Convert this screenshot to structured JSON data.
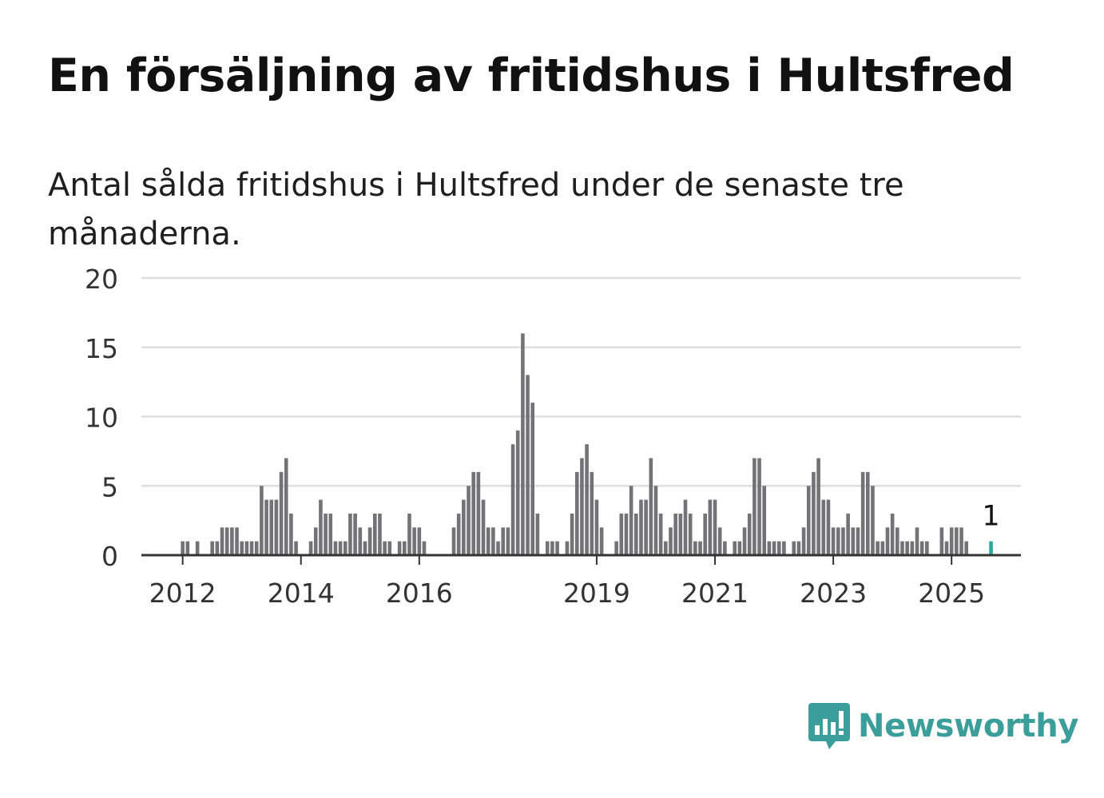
{
  "title": "En försäljning av fritidshus i Hultsfred",
  "subtitle": "Antal sålda fritidshus i Hultsfred under de senaste tre månaderna.",
  "brand": {
    "name": "Newsworthy",
    "logo_icon": "chart-bubble-icon"
  },
  "colors": {
    "bar": "#737276",
    "highlight": "#2aa99b",
    "grid": "#dedede",
    "axis": "#333333",
    "brand": "#3c9e9a"
  },
  "chart_data": {
    "type": "bar",
    "x_start": "2011-05",
    "x_interval": "month",
    "xlabel": "",
    "ylabel": "",
    "ylim": [
      0,
      20
    ],
    "yticks": [
      "0",
      "5",
      "10",
      "15",
      "20"
    ],
    "xticks": [
      "2012",
      "2014",
      "2016",
      "2019",
      "2021",
      "2023",
      "2025"
    ],
    "grid": true,
    "values": [
      0,
      0,
      0,
      0,
      0,
      0,
      0,
      0,
      1,
      1,
      0,
      1,
      0,
      0,
      1,
      1,
      2,
      2,
      2,
      2,
      1,
      1,
      1,
      1,
      5,
      4,
      4,
      4,
      6,
      7,
      3,
      1,
      0,
      0,
      1,
      2,
      4,
      3,
      3,
      1,
      1,
      1,
      3,
      3,
      2,
      1,
      2,
      3,
      3,
      1,
      1,
      0,
      1,
      1,
      3,
      2,
      2,
      1,
      0,
      0,
      0,
      0,
      0,
      2,
      3,
      4,
      5,
      6,
      6,
      4,
      2,
      2,
      1,
      2,
      2,
      8,
      9,
      16,
      13,
      11,
      3,
      0,
      1,
      1,
      1,
      0,
      1,
      3,
      6,
      7,
      8,
      6,
      4,
      2,
      0,
      0,
      1,
      3,
      3,
      5,
      3,
      4,
      4,
      7,
      5,
      3,
      1,
      2,
      3,
      3,
      4,
      3,
      1,
      1,
      3,
      4,
      4,
      2,
      1,
      0,
      1,
      1,
      2,
      3,
      7,
      7,
      5,
      1,
      1,
      1,
      1,
      0,
      1,
      1,
      2,
      5,
      6,
      7,
      4,
      4,
      2,
      2,
      2,
      3,
      2,
      2,
      6,
      6,
      5,
      1,
      1,
      2,
      3,
      2,
      1,
      1,
      1,
      2,
      1,
      1,
      0,
      0,
      2,
      1,
      2,
      2,
      2,
      1,
      0,
      0,
      0,
      0,
      1
    ],
    "highlight": {
      "index": 172,
      "label": "1"
    }
  }
}
